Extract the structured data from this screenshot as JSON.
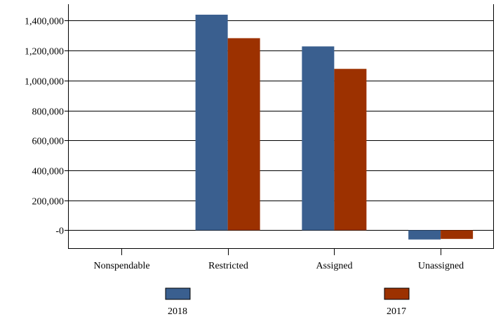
{
  "chart_data": {
    "type": "bar",
    "categories": [
      "Nonspendable",
      "Restricted",
      "Assigned",
      "Unassigned"
    ],
    "series": [
      {
        "name": "2018",
        "color": "#3a5f8f",
        "values": [
          0,
          1440000,
          1228000,
          -62000
        ]
      },
      {
        "name": "2017",
        "color": "#9c3100",
        "values": [
          0,
          1283000,
          1078000,
          -58000
        ]
      }
    ],
    "yticks": [
      {
        "value": 0,
        "label": "-0"
      },
      {
        "value": 200000,
        "label": "200,000"
      },
      {
        "value": 400000,
        "label": "400,000"
      },
      {
        "value": 600000,
        "label": "600,000"
      },
      {
        "value": 800000,
        "label": "800,000"
      },
      {
        "value": 1000000,
        "label": "1,000,000"
      },
      {
        "value": 1200000,
        "label": "1,200,000"
      },
      {
        "value": 1400000,
        "label": "1,400,000"
      }
    ],
    "ylim": [
      -120000,
      1510000
    ],
    "grid": true,
    "legend": "bottom",
    "title": "",
    "xlabel": "",
    "ylabel": ""
  }
}
